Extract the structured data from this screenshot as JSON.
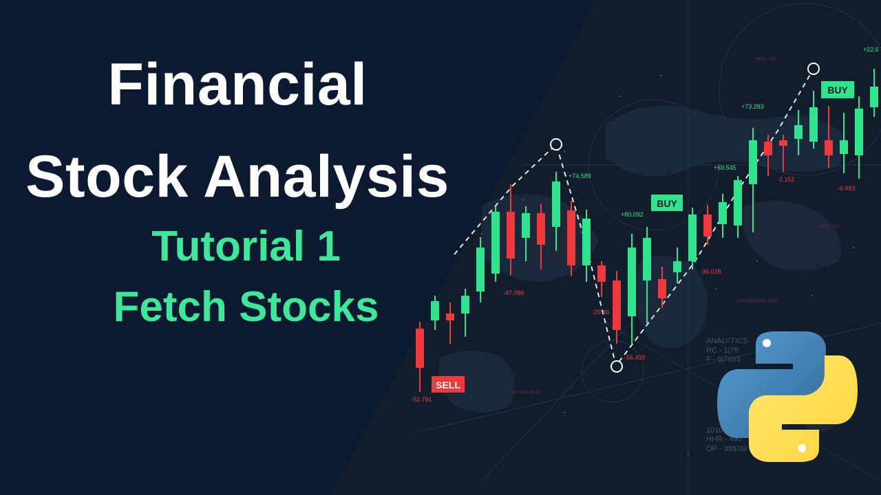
{
  "title": {
    "line1": "Financial",
    "line2": "Stock Analysis",
    "subtitle1": "Tutorial 1",
    "subtitle2": "Fetch Stocks"
  },
  "colors": {
    "left_panel": "#0b1a30",
    "right_panel": "#121d2c",
    "title_text": "#ffffff",
    "subtitle_text": "#3ee89a",
    "candle_up": "#2fe38f",
    "candle_down": "#f0393d",
    "python_blue": "#3e77b4",
    "python_yellow": "#ffd845"
  },
  "chart": {
    "badges": [
      "SELL",
      "BUY",
      "BUY"
    ],
    "value_labels": [
      "-52.791",
      "-47.086",
      "+74.589",
      "-29.46",
      "-56.439",
      "+80.092",
      "-36.028",
      "+69.545",
      "+73.283",
      "-2.152",
      "-6.983",
      "+22.6"
    ],
    "faint_labels": [
      "ANALYTICS",
      "RC - 1|78",
      "F - 6|7893",
      "101011",
      "HHR - 490",
      "OP - 389/39",
      "PRO-798",
      "PRO-789",
      "16574648395-9842",
      "857-964-8592"
    ]
  },
  "logo": {
    "name": "python-logo"
  }
}
